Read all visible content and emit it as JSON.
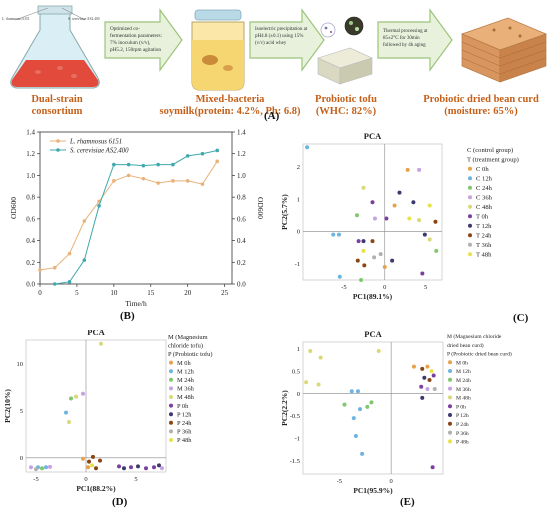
{
  "panelA": {
    "letter": "(A)",
    "flask_labels": [
      "L. rhamnosus 6151",
      "S. cerevisiae AS2.400"
    ],
    "arrow_texts": [
      "Optimized co-fermentation parameters: 7% inoculum (v/v), pH5.2, 150rpm agitation",
      "Isoelectric precipitation at pH4.8 (±0.1) using 15% (v/v) acid whey",
      "Thermal processing at 85±2°C for 30min followed by 4h aging"
    ],
    "stages": [
      {
        "line1": "Dual-strain",
        "line2": "consortium"
      },
      {
        "line1": "Mixed-bacteria",
        "line2": "soymilk(protein: 4.2%, Ph: 6.8)"
      },
      {
        "line1": "Probiotic tofu",
        "line2": "(WHC: 82%)"
      },
      {
        "line1": "Probiotic dried bean curd",
        "line2": "(moisture: 65%)"
      }
    ]
  },
  "panelB": {
    "letter": "(B)",
    "xlabel": "Time/h",
    "ylabel_left": "OD600",
    "ylabel_right": "OD600",
    "legend": [
      "L. rhamnosus 6151",
      "S. cerevisiae AS2.400"
    ]
  },
  "panelC": {
    "letter": "(C)",
    "title": "PCA",
    "xlabel": "PC1(89.1%)",
    "ylabel": "PC2(5.7%)",
    "legend_header": [
      "C (control group)",
      "T (treatment group)"
    ],
    "legend": [
      "C 0h",
      "C 12h",
      "C 24h",
      "C 36h",
      "C 48h",
      "T 0h",
      "T 12h",
      "T 24h",
      "T 36h",
      "T 48h"
    ]
  },
  "panelD": {
    "letter": "(D)",
    "title": "PCA",
    "xlabel": "PC1(88.2%)",
    "ylabel": "PC2(10%)",
    "legend_header": [
      "M (Magnesium",
      "chloride tofu)",
      "P (Probiotic tofu)"
    ],
    "legend": [
      "M  0h",
      "M  12h",
      "M  24h",
      "M  36h",
      "M  48h",
      "P  0h",
      "P  12h",
      "P  24h",
      "P  36h",
      "P  48h"
    ]
  },
  "panelE": {
    "letter": "(E)",
    "title": "PCA",
    "xlabel": "PC1(95.9%)",
    "ylabel": "PC2(2.2%)",
    "legend_header": [
      "M (Magnesium chloride",
      "dried bean curd)",
      "P (Probiotic dried bean curd)"
    ],
    "legend": [
      "M  0h",
      "M  12h",
      "M  24h",
      "M  36h",
      "M  48h",
      "P  0h",
      "P  12h",
      "P  24h",
      "P  36h",
      "P  48h"
    ]
  },
  "chart_data": [
    {
      "type": "line",
      "panel": "B",
      "xlabel": "Time/h",
      "ylabel": "OD600",
      "xlim": [
        0,
        26
      ],
      "ylim": [
        0,
        1.4
      ],
      "xticks": [
        0,
        5,
        10,
        15,
        20,
        25
      ],
      "yticks": [
        0.0,
        0.2,
        0.4,
        0.6,
        0.8,
        1.0,
        1.2,
        1.4
      ],
      "colors": [
        "#e8b27a",
        "#3fa9ad"
      ],
      "series": [
        {
          "name": "L. rhamnosus 6151",
          "x": [
            0,
            2,
            4,
            6,
            8,
            10,
            12,
            14,
            16,
            18,
            20,
            22,
            24
          ],
          "y": [
            0.13,
            0.15,
            0.28,
            0.58,
            0.76,
            0.95,
            1.0,
            0.97,
            0.93,
            0.95,
            0.95,
            0.92,
            1.13
          ]
        },
        {
          "name": "S. cerevisiae AS2.400",
          "x": [
            2,
            4,
            6,
            8,
            10,
            12,
            14,
            16,
            18,
            20,
            22,
            24
          ],
          "y": [
            0.0,
            0.02,
            0.22,
            0.72,
            1.1,
            1.1,
            1.09,
            1.1,
            1.1,
            1.18,
            1.2,
            1.23
          ]
        }
      ]
    },
    {
      "type": "scatter",
      "panel": "C",
      "title": "PCA",
      "xlabel": "PC1(89.1%)",
      "ylabel": "PC2(5.7%)",
      "xlim": [
        -10,
        7
      ],
      "ylim": [
        -1.5,
        2.7
      ],
      "xticks": [
        -5,
        0,
        5
      ],
      "yticks": [
        -1,
        0,
        1,
        2
      ],
      "groups": [
        "C 0h",
        "C 12h",
        "C 24h",
        "C 36h",
        "C 48h",
        "T 0h",
        "T 12h",
        "T 24h",
        "T 36h",
        "T 48h"
      ],
      "colors": [
        "#e6a24a",
        "#6fb3e0",
        "#7fc86e",
        "#c6a2e0",
        "#d9d97a",
        "#7b3fa0",
        "#3a3a6e",
        "#8b4513",
        "#b0b0b0",
        "#e8e24a"
      ],
      "points": [
        {
          "x": -9.5,
          "y": 2.6,
          "g": 1
        },
        {
          "x": 2.8,
          "y": 1.9,
          "g": 0
        },
        {
          "x": 4.2,
          "y": 1.9,
          "g": 3
        },
        {
          "x": -2.6,
          "y": 1.35,
          "g": 4
        },
        {
          "x": 1.8,
          "y": 1.2,
          "g": 6
        },
        {
          "x": 3.5,
          "y": 0.9,
          "g": 6
        },
        {
          "x": 1.2,
          "y": 0.8,
          "g": 0
        },
        {
          "x": -1.5,
          "y": 0.9,
          "g": 5
        },
        {
          "x": 5.5,
          "y": 0.8,
          "g": 9
        },
        {
          "x": -3.4,
          "y": 0.5,
          "g": 2
        },
        {
          "x": -1.2,
          "y": 0.4,
          "g": 3
        },
        {
          "x": 0.2,
          "y": 0.4,
          "g": 5
        },
        {
          "x": 3.0,
          "y": 0.4,
          "g": 9
        },
        {
          "x": 4.2,
          "y": 0.35,
          "g": 4
        },
        {
          "x": 6.2,
          "y": 0.3,
          "g": 7
        },
        {
          "x": 4.9,
          "y": -0.1,
          "g": 6
        },
        {
          "x": -5.6,
          "y": -0.1,
          "g": 1
        },
        {
          "x": -6.3,
          "y": -0.1,
          "g": 1
        },
        {
          "x": 5.5,
          "y": -0.25,
          "g": 4
        },
        {
          "x": -3.2,
          "y": -0.3,
          "g": 5
        },
        {
          "x": -2.6,
          "y": -0.3,
          "g": 6
        },
        {
          "x": -1.5,
          "y": -0.3,
          "g": 7
        },
        {
          "x": -2.6,
          "y": -0.6,
          "g": 9
        },
        {
          "x": -0.5,
          "y": -0.7,
          "g": 8
        },
        {
          "x": -1.3,
          "y": -0.8,
          "g": 8
        },
        {
          "x": -3.3,
          "y": -0.9,
          "g": 7
        },
        {
          "x": 0.9,
          "y": -0.9,
          "g": 6
        },
        {
          "x": -2.5,
          "y": -1.05,
          "g": 7
        },
        {
          "x": -5.5,
          "y": -1.4,
          "g": 1
        },
        {
          "x": -2.9,
          "y": -1.5,
          "g": 2
        },
        {
          "x": 4.6,
          "y": -1.3,
          "g": 5
        },
        {
          "x": 6.3,
          "y": -0.6,
          "g": 2
        },
        {
          "x": 0.0,
          "y": -1.1,
          "g": 0
        }
      ]
    },
    {
      "type": "scatter",
      "panel": "D",
      "title": "PCA",
      "xlabel": "PC1(88.2%)",
      "ylabel": "PC2(10%)",
      "xlim": [
        -6,
        8
      ],
      "ylim": [
        -1.5,
        12.5
      ],
      "xticks": [
        -5,
        0,
        5
      ],
      "yticks": [
        0,
        5,
        10
      ],
      "groups": [
        "M 0h",
        "M 12h",
        "M 24h",
        "M 36h",
        "M 48h",
        "P 0h",
        "P 12h",
        "P 24h",
        "P 36h",
        "P 48h"
      ],
      "colors": [
        "#e6a24a",
        "#6fb3e0",
        "#7fc86e",
        "#c6a2e0",
        "#d9d97a",
        "#7b3fa0",
        "#3a3a6e",
        "#8b4513",
        "#b0b0b0",
        "#e8e24a"
      ],
      "points": [
        {
          "x": 1.5,
          "y": 12.1,
          "g": 4
        },
        {
          "x": -1.5,
          "y": 6.3,
          "g": 2
        },
        {
          "x": -1.0,
          "y": 6.5,
          "g": 4
        },
        {
          "x": -0.3,
          "y": 6.8,
          "g": 3
        },
        {
          "x": -1.7,
          "y": 3.8,
          "g": 4
        },
        {
          "x": -2.0,
          "y": 4.8,
          "g": 1
        },
        {
          "x": -0.3,
          "y": -0.1,
          "g": 0
        },
        {
          "x": 0.7,
          "y": 0.1,
          "g": 7
        },
        {
          "x": 0.3,
          "y": -0.4,
          "g": 7
        },
        {
          "x": 1.4,
          "y": -0.3,
          "g": 7
        },
        {
          "x": 0.2,
          "y": -1.0,
          "g": 0
        },
        {
          "x": 1.0,
          "y": -1.1,
          "g": 7
        },
        {
          "x": 0.6,
          "y": -0.8,
          "g": 9
        },
        {
          "x": -5.5,
          "y": -1.0,
          "g": 3
        },
        {
          "x": -4.8,
          "y": -1.0,
          "g": 1
        },
        {
          "x": -4.4,
          "y": -1.1,
          "g": 2
        },
        {
          "x": -4.0,
          "y": -1.0,
          "g": 1
        },
        {
          "x": -3.6,
          "y": -0.95,
          "g": 3
        },
        {
          "x": -5.0,
          "y": -1.2,
          "g": 8
        },
        {
          "x": 3.3,
          "y": -0.9,
          "g": 5
        },
        {
          "x": 3.8,
          "y": -1.1,
          "g": 6
        },
        {
          "x": 4.5,
          "y": -1.0,
          "g": 5
        },
        {
          "x": 5.2,
          "y": -0.9,
          "g": 6
        },
        {
          "x": 6.0,
          "y": -1.1,
          "g": 5
        },
        {
          "x": 6.8,
          "y": -1.0,
          "g": 5
        },
        {
          "x": 7.3,
          "y": -0.8,
          "g": 6
        },
        {
          "x": 7.6,
          "y": -1.1,
          "g": 3
        }
      ]
    },
    {
      "type": "scatter",
      "panel": "E",
      "title": "PCA",
      "xlabel": "PC1(95.9%)",
      "ylabel": "PC2(2.2%)",
      "xlim": [
        -8.5,
        5
      ],
      "ylim": [
        -1.8,
        1.15
      ],
      "xticks": [
        -5,
        0
      ],
      "yticks": [
        -1.5,
        -1,
        -0.5,
        0,
        0.5,
        1
      ],
      "groups": [
        "M 0h",
        "M 12h",
        "M 24h",
        "M 36h",
        "M 48h",
        "P 0h",
        "P 12h",
        "P 24h",
        "P 36h",
        "P 48h"
      ],
      "colors": [
        "#e6a24a",
        "#6fb3e0",
        "#7fc86e",
        "#c6a2e0",
        "#d9d97a",
        "#7b3fa0",
        "#3a3a6e",
        "#8b4513",
        "#b0b0b0",
        "#e8e24a"
      ],
      "points": [
        {
          "x": -7.8,
          "y": 0.95,
          "g": 4
        },
        {
          "x": -6.8,
          "y": 0.8,
          "g": 4
        },
        {
          "x": -8.2,
          "y": 0.25,
          "g": 4
        },
        {
          "x": -7.0,
          "y": 0.2,
          "g": 4
        },
        {
          "x": -1.2,
          "y": 0.95,
          "g": 4
        },
        {
          "x": 2.2,
          "y": 0.6,
          "g": 0
        },
        {
          "x": -3.8,
          "y": 0.05,
          "g": 1
        },
        {
          "x": -3.2,
          "y": 0.05,
          "g": 1
        },
        {
          "x": -4.5,
          "y": -0.25,
          "g": 2
        },
        {
          "x": -3.0,
          "y": -0.35,
          "g": 1
        },
        {
          "x": -2.3,
          "y": -0.3,
          "g": 2
        },
        {
          "x": -1.9,
          "y": -0.2,
          "g": 2
        },
        {
          "x": -3.6,
          "y": -0.55,
          "g": 1
        },
        {
          "x": -3.4,
          "y": -0.95,
          "g": 1
        },
        {
          "x": -2.8,
          "y": -1.35,
          "g": 1
        },
        {
          "x": 3.0,
          "y": 0.55,
          "g": 7
        },
        {
          "x": 3.5,
          "y": 0.6,
          "g": 0
        },
        {
          "x": 3.9,
          "y": 0.5,
          "g": 9
        },
        {
          "x": 3.2,
          "y": 0.35,
          "g": 6
        },
        {
          "x": 3.7,
          "y": 0.3,
          "g": 7
        },
        {
          "x": 4.1,
          "y": 0.4,
          "g": 5
        },
        {
          "x": 2.9,
          "y": 0.15,
          "g": 5
        },
        {
          "x": 3.5,
          "y": 0.1,
          "g": 3
        },
        {
          "x": 4.2,
          "y": 0.1,
          "g": 8
        },
        {
          "x": 3.0,
          "y": -0.1,
          "g": 6
        },
        {
          "x": 4.0,
          "y": -1.65,
          "g": 5
        }
      ]
    }
  ]
}
